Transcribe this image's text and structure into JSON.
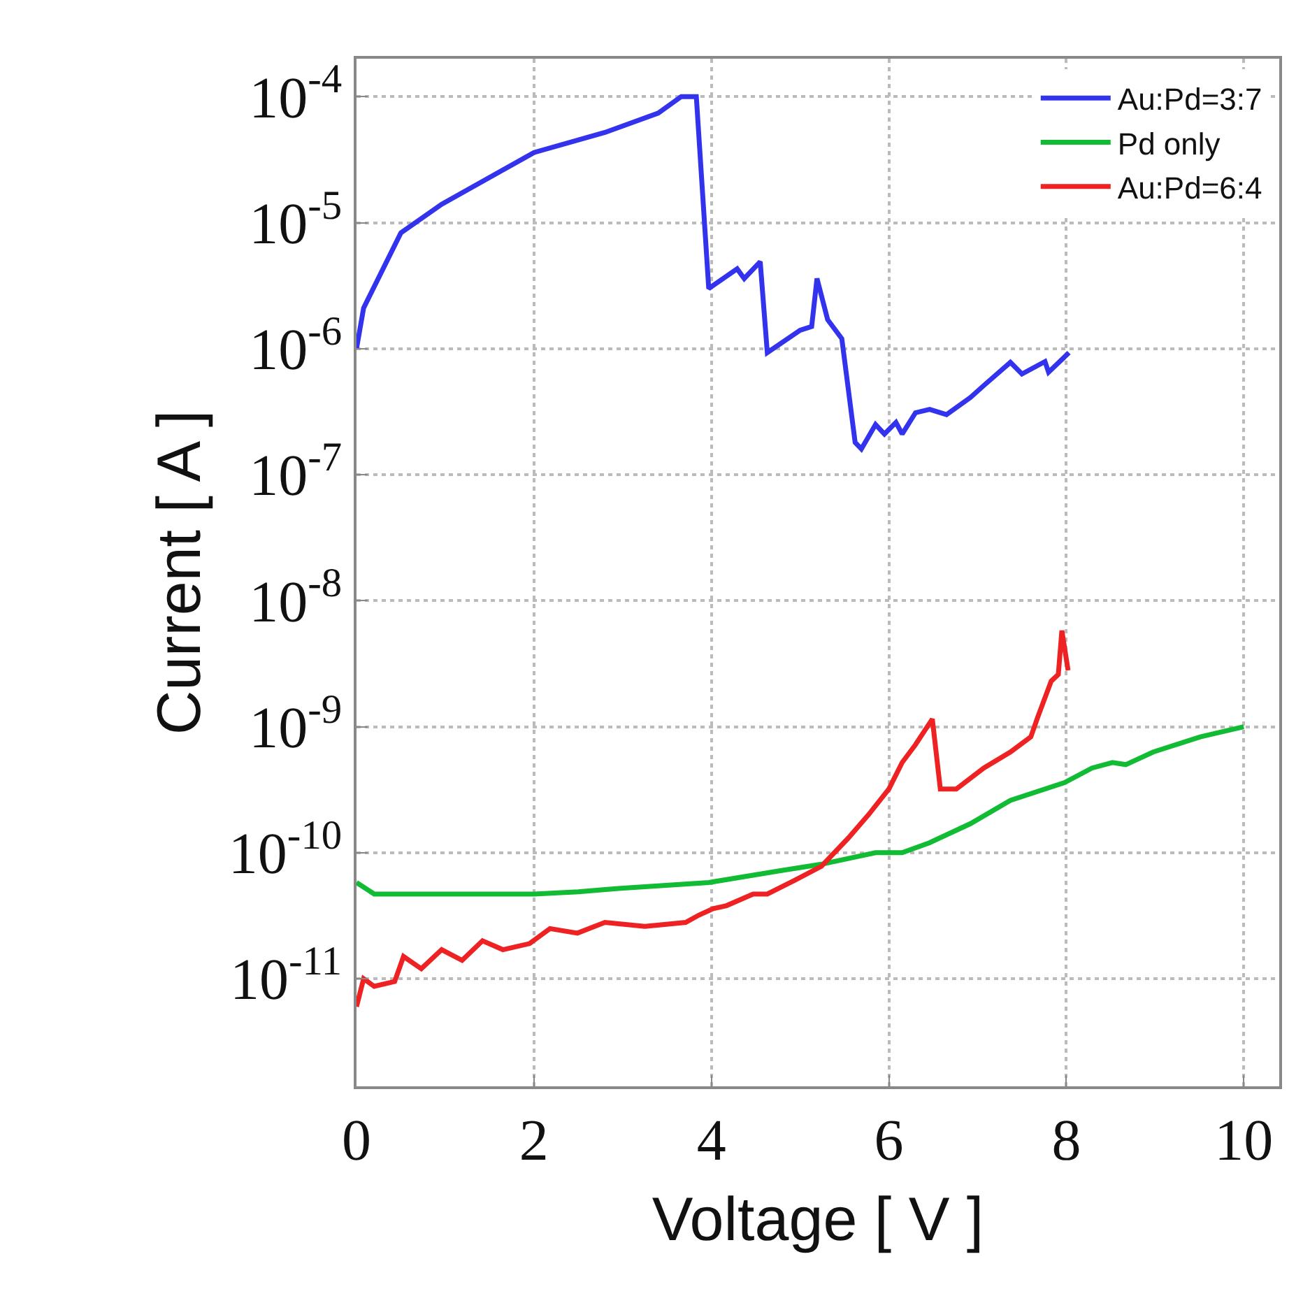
{
  "chart_data": {
    "type": "line",
    "xlabel": "Voltage [ V ]",
    "ylabel": "Current [ A ]",
    "log": "y",
    "grid": true,
    "legend": "top right",
    "marker": "none",
    "line_style": "solid",
    "xlim": [
      0,
      10.4
    ],
    "xticks": [
      0,
      2,
      4,
      6,
      8,
      10
    ],
    "ylim": [
      1.4e-12,
      0.0002
    ],
    "yticks": [
      {
        "value": 1e-11,
        "label": "10$^{-11}$"
      },
      {
        "value": 1e-10,
        "label": "10$^{-10}$"
      },
      {
        "value": 1e-09,
        "label": "10$^{-9}$"
      },
      {
        "value": 1e-08,
        "label": "10$^{-8}$"
      },
      {
        "value": 1e-07,
        "label": "10$^{-7}$"
      },
      {
        "value": 1e-06,
        "label": "10$^{-6}$"
      },
      {
        "value": 1e-05,
        "label": "10$^{-5}$"
      },
      {
        "value": 0.0001,
        "label": "10$^{-4}$"
      }
    ],
    "series": [
      {
        "name": "Au:Pd=3:7",
        "color": "#3333ee",
        "x": [
          0,
          0.08,
          0.5,
          0.96,
          2,
          2.8,
          3.4,
          3.66,
          3.83,
          3.97,
          4.29,
          4.37,
          4.55,
          4.63,
          5.0,
          5.13,
          5.19,
          5.31,
          5.47,
          5.62,
          5.69,
          5.85,
          5.95,
          6.08,
          6.15,
          6.3,
          6.46,
          6.65,
          6.92,
          7.07,
          7.37,
          7.5,
          7.76,
          7.8,
          8.03
        ],
        "values": [
          1e-06,
          2.1e-06,
          8.3e-06,
          1.4e-05,
          3.6e-05,
          5.2e-05,
          7.4e-05,
          0.0001,
          0.0001,
          3e-06,
          4.3e-06,
          3.6e-06,
          4.9e-06,
          9.3e-07,
          1.4e-06,
          1.5e-06,
          3.6e-06,
          1.7e-06,
          1.2e-06,
          1.8e-07,
          1.6e-07,
          2.5e-07,
          2.1e-07,
          2.6e-07,
          2.1e-07,
          3.1e-07,
          3.3e-07,
          3e-07,
          4.1e-07,
          5.1e-07,
          7.8e-07,
          6.3e-07,
          7.9e-07,
          6.5e-07,
          9.3e-07
        ]
      },
      {
        "name": "Pd only",
        "color": "#11bb33",
        "x": [
          0,
          0.2,
          2,
          2.5,
          2.95,
          3.97,
          4.78,
          5.24,
          5.85,
          6.15,
          6.46,
          6.92,
          7.37,
          7.98,
          8.29,
          8.52,
          8.67,
          8.98,
          9.51,
          10.0
        ],
        "values": [
          5.8e-11,
          4.7e-11,
          4.7e-11,
          4.9e-11,
          5.2e-11,
          5.8e-11,
          7.2e-11,
          8.1e-11,
          1e-10,
          1e-10,
          1.2e-10,
          1.7e-10,
          2.6e-10,
          3.6e-10,
          4.7e-10,
          5.2e-10,
          5e-10,
          6.3e-10,
          8.3e-10,
          1e-09
        ]
      },
      {
        "name": "Au:Pd=6:4",
        "color": "#ee2222",
        "x": [
          0,
          0.08,
          0.2,
          0.43,
          0.53,
          0.73,
          0.96,
          1.19,
          1.42,
          1.65,
          1.95,
          2.18,
          2.49,
          2.8,
          3.25,
          3.71,
          3.86,
          4.02,
          4.17,
          4.47,
          4.63,
          4.93,
          5.24,
          5.54,
          5.77,
          6.0,
          6.15,
          6.3,
          6.49,
          6.58,
          6.76,
          7.07,
          7.37,
          7.6,
          7.68,
          7.83,
          7.91,
          7.95,
          8.02
        ],
        "values": [
          6e-12,
          1e-11,
          8.7e-12,
          9.5e-12,
          1.5e-11,
          1.2e-11,
          1.7e-11,
          1.4e-11,
          2e-11,
          1.7e-11,
          1.9e-11,
          2.5e-11,
          2.3e-11,
          2.8e-11,
          2.6e-11,
          2.8e-11,
          3.2e-11,
          3.6e-11,
          3.8e-11,
          4.7e-11,
          4.7e-11,
          6e-11,
          7.8e-11,
          1.3e-10,
          2e-10,
          3.2e-10,
          5.2e-10,
          7.2e-10,
          1.15e-09,
          3.2e-10,
          3.2e-10,
          4.7e-10,
          6.3e-10,
          8.3e-10,
          1.2e-09,
          2.3e-09,
          2.6e-09,
          5.8e-09,
          2.8e-09
        ]
      }
    ]
  }
}
